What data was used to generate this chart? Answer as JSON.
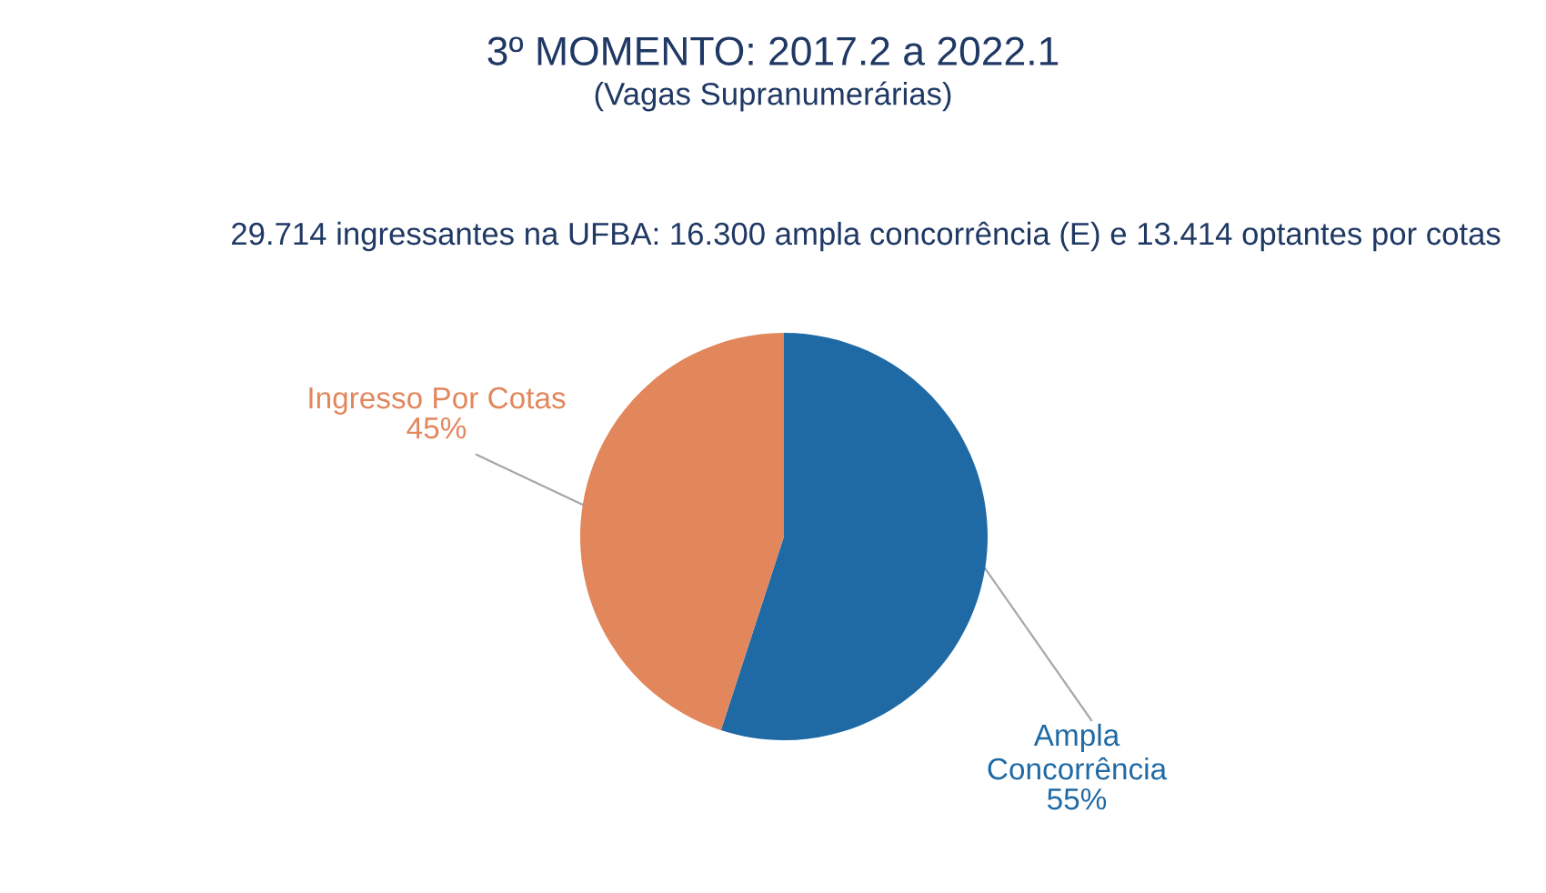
{
  "chart_data": {
    "type": "pie",
    "title": "3º MOMENTO: 2017.2 a 2022.1",
    "subtitle": "(Vagas Supranumerárias)",
    "annotations": [
      "29.714 ingressantes na UFBA: 16.300 ampla concorrência (E) e 13.414 optantes por cotas"
    ],
    "categories": [
      "Ampla Concorrência",
      "Ingresso Por Cotas"
    ],
    "values": [
      55,
      45
    ],
    "colors": [
      "#1f6aa5",
      "#e2865c"
    ],
    "value_labels": [
      "55%",
      "45%"
    ]
  }
}
